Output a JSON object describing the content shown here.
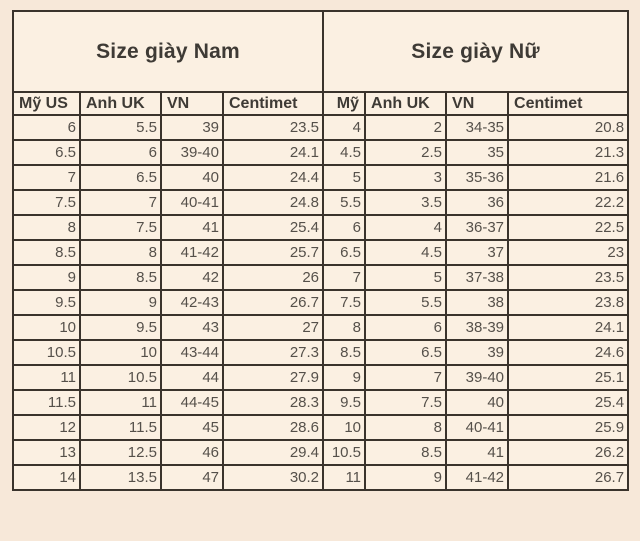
{
  "table": {
    "sections": [
      {
        "title": "Size giày Nam",
        "headers": [
          "Mỹ US",
          "Anh UK",
          "VN",
          "Centimet"
        ]
      },
      {
        "title": "Size giày Nữ",
        "headers": [
          "Mỹ",
          "Anh UK",
          "VN",
          "Centimet"
        ]
      }
    ],
    "rows": [
      [
        "6",
        "5.5",
        "39",
        "23.5",
        "4",
        "2",
        "34-35",
        "20.8"
      ],
      [
        "6.5",
        "6",
        "39-40",
        "24.1",
        "4.5",
        "2.5",
        "35",
        "21.3"
      ],
      [
        "7",
        "6.5",
        "40",
        "24.4",
        "5",
        "3",
        "35-36",
        "21.6"
      ],
      [
        "7.5",
        "7",
        "40-41",
        "24.8",
        "5.5",
        "3.5",
        "36",
        "22.2"
      ],
      [
        "8",
        "7.5",
        "41",
        "25.4",
        "6",
        "4",
        "36-37",
        "22.5"
      ],
      [
        "8.5",
        "8",
        "41-42",
        "25.7",
        "6.5",
        "4.5",
        "37",
        "23"
      ],
      [
        "9",
        "8.5",
        "42",
        "26",
        "7",
        "5",
        "37-38",
        "23.5"
      ],
      [
        "9.5",
        "9",
        "42-43",
        "26.7",
        "7.5",
        "5.5",
        "38",
        "23.8"
      ],
      [
        "10",
        "9.5",
        "43",
        "27",
        "8",
        "6",
        "38-39",
        "24.1"
      ],
      [
        "10.5",
        "10",
        "43-44",
        "27.3",
        "8.5",
        "6.5",
        "39",
        "24.6"
      ],
      [
        "11",
        "10.5",
        "44",
        "27.9",
        "9",
        "7",
        "39-40",
        "25.1"
      ],
      [
        "11.5",
        "11",
        "44-45",
        "28.3",
        "9.5",
        "7.5",
        "40",
        "25.4"
      ],
      [
        "12",
        "11.5",
        "45",
        "28.6",
        "10",
        "8",
        "40-41",
        "25.9"
      ],
      [
        "13",
        "12.5",
        "46",
        "29.4",
        "10.5",
        "8.5",
        "41",
        "26.2"
      ],
      [
        "14",
        "13.5",
        "47",
        "30.2",
        "11",
        "9",
        "41-42",
        "26.7"
      ]
    ]
  },
  "colors": {
    "page_background": "#f7e8d9",
    "cell_background": "#fbf0e2",
    "border": "#3a332c",
    "title_text": "#3e3a35",
    "data_text": "#55504a"
  }
}
